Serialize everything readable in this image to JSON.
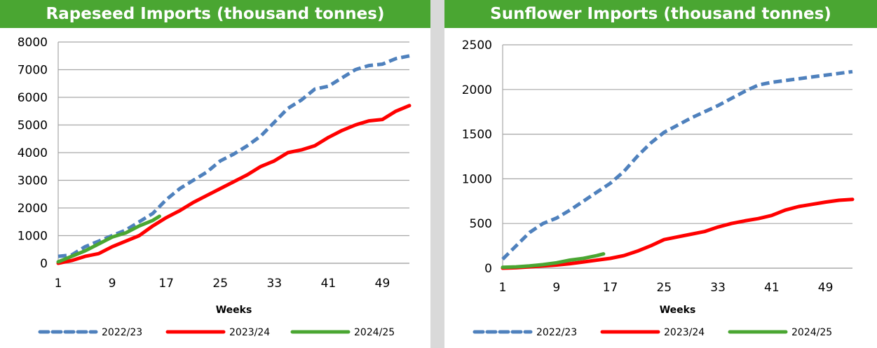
{
  "chart_data": [
    {
      "type": "line",
      "title": "Rapeseed Imports (thousand tonnes)",
      "xlabel": "Weeks",
      "ylabel": "",
      "xlim": [
        1,
        53
      ],
      "ylim": [
        0,
        8000
      ],
      "x_ticks": [
        1,
        9,
        17,
        25,
        33,
        41,
        49
      ],
      "y_ticks": [
        0,
        1000,
        2000,
        3000,
        4000,
        5000,
        6000,
        7000,
        8000
      ],
      "grid": "horizontal",
      "legend_position": "bottom",
      "series": [
        {
          "name": "2022/23",
          "color": "#4f81bd",
          "dash": "dashed",
          "x": [
            1,
            3,
            5,
            7,
            9,
            11,
            13,
            15,
            17,
            19,
            21,
            23,
            25,
            27,
            29,
            31,
            33,
            35,
            37,
            39,
            41,
            43,
            45,
            47,
            49,
            51,
            53
          ],
          "values": [
            250,
            300,
            600,
            800,
            1000,
            1200,
            1500,
            1800,
            2300,
            2700,
            3000,
            3300,
            3700,
            3950,
            4250,
            4600,
            5100,
            5600,
            5900,
            6300,
            6400,
            6700,
            7000,
            7150,
            7200,
            7400,
            7500
          ]
        },
        {
          "name": "2023/24",
          "color": "#ff0000",
          "dash": "solid",
          "x": [
            1,
            3,
            5,
            7,
            9,
            11,
            13,
            15,
            17,
            19,
            21,
            23,
            25,
            27,
            29,
            31,
            33,
            35,
            37,
            39,
            41,
            43,
            45,
            47,
            49,
            51,
            53
          ],
          "values": [
            0,
            100,
            250,
            350,
            600,
            800,
            1000,
            1350,
            1650,
            1900,
            2200,
            2450,
            2700,
            2950,
            3200,
            3500,
            3700,
            4000,
            4100,
            4250,
            4550,
            4800,
            5000,
            5150,
            5200,
            5500,
            5700
          ]
        },
        {
          "name": "2024/25",
          "color": "#4aa632",
          "dash": "solid",
          "x": [
            1,
            3,
            5,
            7,
            9,
            11,
            13,
            15,
            16
          ],
          "values": [
            50,
            250,
            450,
            700,
            950,
            1100,
            1350,
            1550,
            1700
          ]
        }
      ]
    },
    {
      "type": "line",
      "title": "Sunflower Imports (thousand tonnes)",
      "xlabel": "Weeks",
      "ylabel": "",
      "xlim": [
        1,
        53
      ],
      "ylim": [
        0,
        2500
      ],
      "x_ticks": [
        1,
        9,
        17,
        25,
        33,
        41,
        49
      ],
      "y_ticks": [
        0,
        500,
        1000,
        1500,
        2000,
        2500
      ],
      "grid": "horizontal",
      "legend_position": "bottom",
      "series": [
        {
          "name": "2022/23",
          "color": "#4f81bd",
          "dash": "dashed",
          "x": [
            1,
            3,
            5,
            7,
            9,
            11,
            13,
            15,
            17,
            19,
            21,
            23,
            25,
            27,
            29,
            31,
            33,
            35,
            37,
            39,
            41,
            43,
            45,
            47,
            49,
            51,
            53
          ],
          "values": [
            100,
            250,
            400,
            500,
            560,
            650,
            750,
            850,
            950,
            1080,
            1250,
            1400,
            1520,
            1600,
            1680,
            1750,
            1820,
            1900,
            1980,
            2050,
            2080,
            2100,
            2120,
            2140,
            2160,
            2180,
            2200
          ]
        },
        {
          "name": "2023/24",
          "color": "#ff0000",
          "dash": "solid",
          "x": [
            1,
            3,
            5,
            7,
            9,
            11,
            13,
            15,
            17,
            19,
            21,
            23,
            25,
            27,
            29,
            31,
            33,
            35,
            37,
            39,
            41,
            43,
            45,
            47,
            49,
            51,
            53
          ],
          "values": [
            0,
            5,
            15,
            25,
            35,
            50,
            70,
            90,
            110,
            140,
            190,
            250,
            320,
            350,
            380,
            410,
            460,
            500,
            530,
            555,
            590,
            650,
            690,
            715,
            740,
            760,
            770
          ]
        },
        {
          "name": "2024/25",
          "color": "#4aa632",
          "dash": "solid",
          "x": [
            1,
            3,
            5,
            7,
            9,
            11,
            13,
            15,
            16
          ],
          "values": [
            10,
            15,
            25,
            40,
            60,
            90,
            110,
            140,
            160
          ]
        }
      ]
    }
  ]
}
